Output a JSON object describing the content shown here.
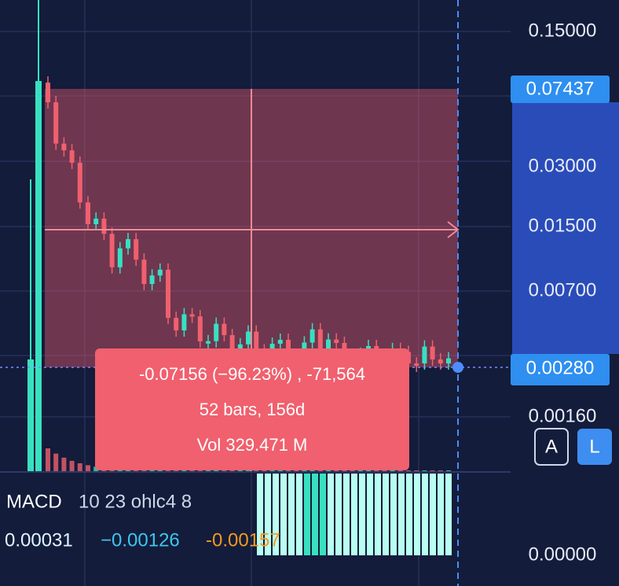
{
  "price_axis": {
    "labels": [
      "0.15000",
      "0.03000",
      "0.01500",
      "0.00700",
      "0.00160"
    ],
    "highlight_labels": [
      "0.07437",
      "0.00280"
    ]
  },
  "measure": {
    "change": "-0.07156 (−96.23%) , -71,564",
    "bars": "52 bars, 156d",
    "volume": "Vol 329.471 M"
  },
  "buttons": [
    "A",
    "L"
  ],
  "macd": {
    "title": "MACD",
    "params": "10 23 ohlc4 8",
    "values": [
      "0.00031",
      "−0.00126",
      "-0.00157"
    ],
    "axis_label": "0.00000"
  }
}
